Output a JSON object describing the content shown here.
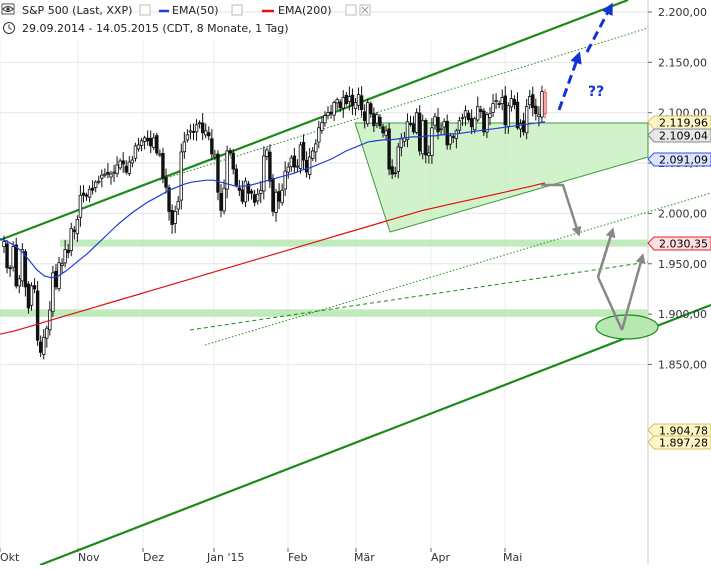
{
  "header": {
    "title": "S&P 500 (Last, XXP)",
    "ema50_label": "EMA(50)",
    "ema200_label": "EMA(200)",
    "subtitle": "29.09.2014 - 14.05.2015 (CDT, 8 Monate, 1 Tag)"
  },
  "colors": {
    "ema50": "#1f3fd8",
    "ema200": "#e01010",
    "channel": "#1a8a1a",
    "zone": "#b6e8b0",
    "arrow_bull": "#1233d6",
    "arrow_proj": "#888888"
  },
  "annotation_text": "??",
  "chart_data": {
    "type": "candlestick",
    "title": "S&P 500 (Last, XXP)",
    "date_range": [
      "2014-09-29",
      "2015-05-14"
    ],
    "x_ticks": [
      "Okt",
      "Nov",
      "Dez",
      "Jan '15",
      "Feb",
      "Mär",
      "Apr",
      "Mai"
    ],
    "y_ticks": [
      "2.200,00",
      "2.150,00",
      "2.100,00",
      "2.050,00",
      "2.000,00",
      "1.950,00",
      "1.900,00",
      "1.850,00"
    ],
    "y_tick_values": [
      2200,
      2150,
      2100,
      2050,
      2000,
      1950,
      1900,
      1850
    ],
    "ylim": [
      1830,
      2210
    ],
    "price_labels": [
      {
        "text": "2.119,96",
        "value": 2119.96,
        "style": "yellow"
      },
      {
        "text": "2.109,04",
        "value": 2109.04,
        "style": "gray"
      },
      {
        "text": "2.091,09",
        "value": 2091.09,
        "style": "blue"
      },
      {
        "text": "2.030,35",
        "value": 2030.35,
        "style": "red"
      },
      {
        "text": "1.904,78",
        "value": 1904.78,
        "style": "yellow"
      },
      {
        "text": "1.897,28",
        "value": 1897.28,
        "style": "yellow"
      }
    ],
    "support_zones": [
      {
        "from": 1967,
        "to": 1974
      },
      {
        "from": 1897.28,
        "to": 1904.78
      }
    ],
    "series": [
      {
        "name": "S&P 500 (Last, XXP)",
        "kind": "close_approx",
        "values": [
          1972,
          1946,
          1946,
          1967,
          1928,
          1935,
          1964,
          1927,
          1906,
          1928,
          1925,
          1874,
          1862,
          1877,
          1886,
          1904,
          1941,
          1927,
          1951,
          1950,
          1964,
          1961,
          1985,
          1982,
          1994,
          2018,
          2018,
          2017,
          2024,
          2023,
          2031,
          2032,
          2038,
          2039,
          2039,
          2039,
          2041,
          2048,
          2052,
          2049,
          2041,
          2051,
          2053,
          2067,
          2068,
          2072,
          2075,
          2072,
          2067,
          2075,
          2060,
          2059,
          2035,
          2026,
          2002,
          1989,
          2002,
          2012,
          2061,
          2071,
          2078,
          2082,
          2081,
          2088,
          2090,
          2080,
          2082,
          2077,
          2059,
          2058,
          2021,
          2003,
          2025,
          2062,
          2060,
          2044,
          2028,
          2023,
          2012,
          2032,
          2020,
          2020,
          2011,
          2019,
          2023,
          2057,
          2063,
          2032,
          2002,
          2021,
          2012,
          2023,
          2042,
          2046,
          2055,
          2046,
          2047,
          2068,
          2053,
          2041,
          2056,
          2062,
          2069,
          2085,
          2090,
          2097,
          2100,
          2100,
          2110,
          2113,
          2105,
          2115,
          2109,
          2116,
          2107,
          2110,
          2118,
          2103,
          2092,
          2110,
          2099,
          2087,
          2098,
          2087,
          2080,
          2082,
          2044,
          2039,
          2040,
          2066,
          2074,
          2075,
          2091,
          2089,
          2081,
          2100,
          2062,
          2092,
          2058,
          2060,
          2085,
          2096,
          2081,
          2084,
          2091,
          2068,
          2077,
          2076,
          2082,
          2092,
          2095,
          2102,
          2093,
          2086,
          2094,
          2106,
          2101,
          2081,
          2098,
          2099,
          2109,
          2112,
          2109,
          2115,
          2088,
          2107,
          2114,
          2108,
          2085,
          2089,
          2081,
          2106,
          2116,
          2105,
          2099,
          2098,
          2121,
          2099
        ]
      },
      {
        "name": "EMA(50)",
        "values": [
          1975,
          1972,
          1968,
          1962,
          1953,
          1944,
          1938,
          1936,
          1938,
          1943,
          1949,
          1955,
          1961,
          1968,
          1975,
          1982,
          1989,
          1995,
          2001,
          2006,
          2011,
          2015,
          2019,
          2023,
          2026,
          2029,
          2031,
          2032,
          2033,
          2033,
          2031,
          2029,
          2027,
          2027,
          2028,
          2030,
          2032,
          2034,
          2036,
          2038,
          2040,
          2043,
          2045,
          2048,
          2051,
          2054,
          2058,
          2062,
          2065,
          2068,
          2071,
          2072,
          2073,
          2073,
          2074,
          2075,
          2076,
          2076,
          2077,
          2077,
          2078,
          2079,
          2079,
          2080,
          2081,
          2082,
          2083,
          2084,
          2085,
          2086,
          2087,
          2088,
          2089,
          2090,
          2091.09
        ]
      },
      {
        "name": "EMA(200)",
        "values": [
          1880,
          1883,
          1887,
          1891,
          1895,
          1899,
          1903,
          1907,
          1911,
          1915,
          1919,
          1923,
          1927,
          1931,
          1935,
          1939,
          1943,
          1947,
          1951,
          1955,
          1959,
          1963,
          1967,
          1971,
          1975,
          1979,
          1983,
          1987,
          1991,
          1995,
          1999,
          2003,
          2006,
          2009,
          2012,
          2015,
          2018,
          2021,
          2024,
          2027,
          2030.35
        ]
      }
    ]
  }
}
